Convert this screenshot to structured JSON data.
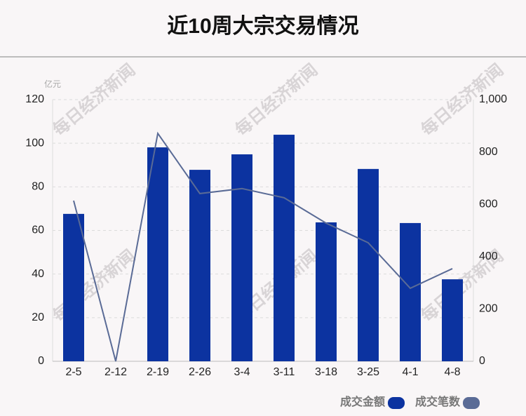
{
  "chart_data": {
    "type": "bar",
    "title": "近10周大宗交易情况",
    "y_unit": "亿元",
    "watermark": "每日经济新闻",
    "categories": [
      "2-5",
      "2-12",
      "2-19",
      "2-26",
      "3-4",
      "3-11",
      "3-18",
      "3-25",
      "4-1",
      "4-8"
    ],
    "series": [
      {
        "name": "成交金额",
        "color": "#0c33a0",
        "axis": "y",
        "values": [
          67.6,
          0,
          98.1,
          87.8,
          94.9,
          103.9,
          63.7,
          88.2,
          63.4,
          37.6
        ]
      },
      {
        "name": "成交笔数",
        "color": "#5a6b96",
        "axis": "y2",
        "values": [
          614,
          0,
          871,
          641,
          660,
          625,
          528,
          453,
          279,
          354
        ]
      }
    ],
    "ylim": [
      0,
      120
    ],
    "yticks": [
      0,
      20,
      40,
      60,
      80,
      100,
      120
    ],
    "y2lim": [
      0,
      1000
    ],
    "y2ticks": [
      0,
      200,
      400,
      600,
      800,
      {
        "value": 1000,
        "label": "1,000"
      }
    ],
    "grid": true,
    "legend": "bottom-right"
  }
}
